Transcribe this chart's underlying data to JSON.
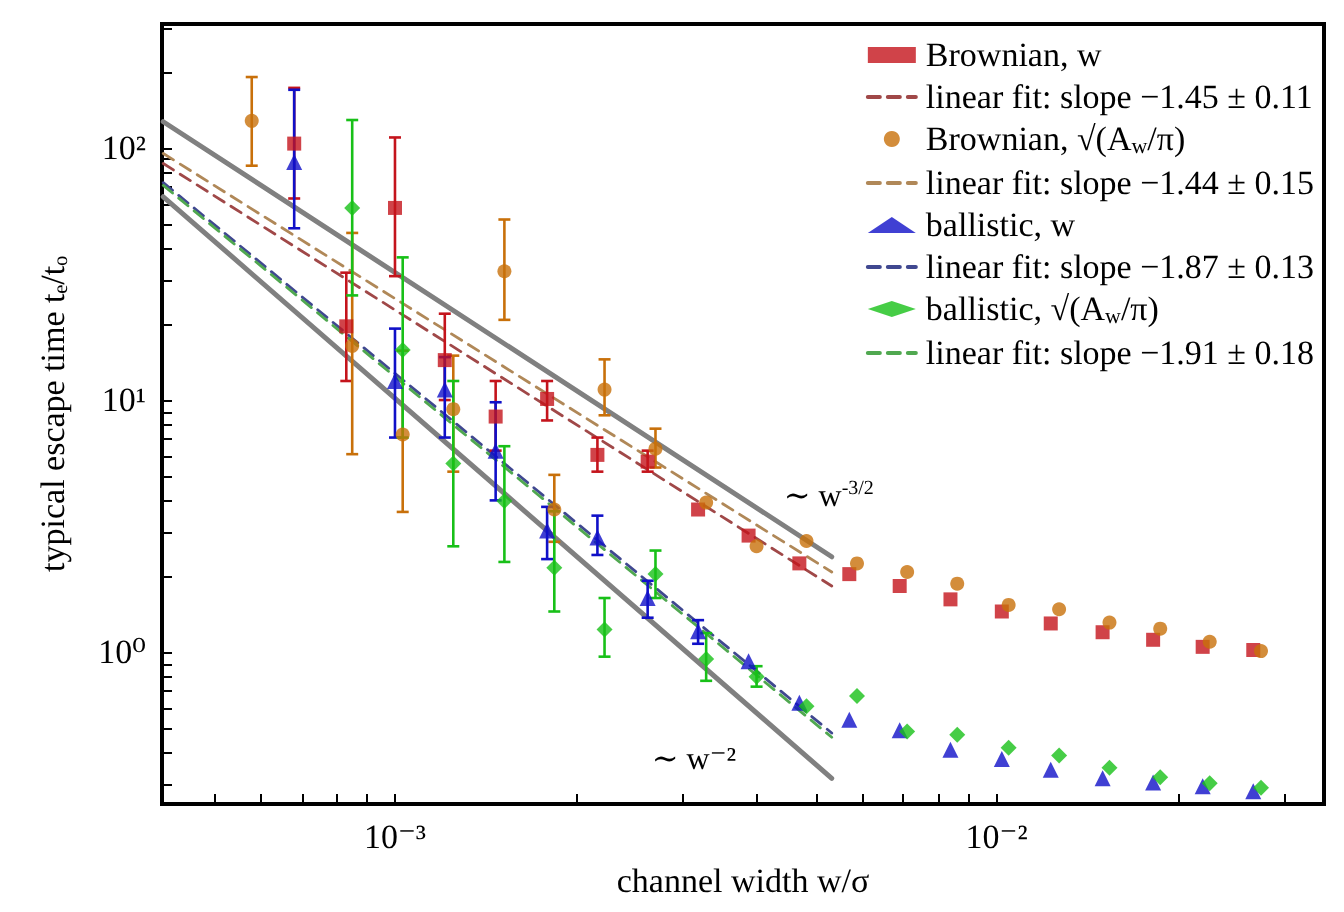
{
  "chart_data": {
    "type": "scatter",
    "xlabel": "channel width w/σ",
    "ylabel": "typical escape time tₑ/tₒ",
    "log": "xy",
    "grid": false,
    "legend": "top right",
    "xlim": [
      0.00041,
      0.035
    ],
    "ylim": [
      0.25,
      310
    ],
    "xticks": [
      {
        "value": 0.0005,
        "label": null
      },
      {
        "value": 0.0006,
        "label": null
      },
      {
        "value": 0.0007,
        "label": null
      },
      {
        "value": 0.0008,
        "label": null
      },
      {
        "value": 0.0009,
        "label": null
      },
      {
        "value": 0.001,
        "label": "10⁻³"
      },
      {
        "value": 0.002,
        "label": null
      },
      {
        "value": 0.003,
        "label": null
      },
      {
        "value": 0.004,
        "label": null
      },
      {
        "value": 0.005,
        "label": null
      },
      {
        "value": 0.006,
        "label": null
      },
      {
        "value": 0.007,
        "label": null
      },
      {
        "value": 0.008,
        "label": null
      },
      {
        "value": 0.009,
        "label": null
      },
      {
        "value": 0.01,
        "label": "10⁻²"
      },
      {
        "value": 0.02,
        "label": null
      },
      {
        "value": 0.03,
        "label": null
      }
    ],
    "yticks": [
      {
        "value": 0.3,
        "label": null
      },
      {
        "value": 0.4,
        "label": null
      },
      {
        "value": 0.5,
        "label": null
      },
      {
        "value": 0.6,
        "label": null
      },
      {
        "value": 0.7,
        "label": null
      },
      {
        "value": 0.8,
        "label": null
      },
      {
        "value": 0.9,
        "label": null
      },
      {
        "value": 1,
        "label": "10⁰"
      },
      {
        "value": 2,
        "label": null
      },
      {
        "value": 3,
        "label": null
      },
      {
        "value": 4,
        "label": null
      },
      {
        "value": 5,
        "label": null
      },
      {
        "value": 6,
        "label": null
      },
      {
        "value": 7,
        "label": null
      },
      {
        "value": 8,
        "label": null
      },
      {
        "value": 9,
        "label": null
      },
      {
        "value": 10,
        "label": "10¹"
      },
      {
        "value": 20,
        "label": null
      },
      {
        "value": 30,
        "label": null
      },
      {
        "value": 40,
        "label": null
      },
      {
        "value": 50,
        "label": null
      },
      {
        "value": 60,
        "label": null
      },
      {
        "value": 70,
        "label": null
      },
      {
        "value": 80,
        "label": null
      },
      {
        "value": 90,
        "label": null
      },
      {
        "value": 100,
        "label": "10²"
      },
      {
        "value": 200,
        "label": null
      },
      {
        "value": 300,
        "label": null
      }
    ],
    "annotations": [
      "∼ w$^{-3/2}$",
      "∼ w⁻²"
    ],
    "series": [
      {
        "name": "Brownian, w",
        "marker": "square",
        "color": "#c4141c",
        "x": [
          0.00068,
          0.00083,
          0.001,
          0.00121,
          0.00147,
          0.00179,
          0.00217,
          0.00263,
          0.00319,
          0.00387,
          0.0047,
          0.00569,
          0.0069,
          0.00838,
          0.0102,
          0.0123,
          0.015,
          0.0182,
          0.022,
          0.0267
        ],
        "values": [
          104,
          19.6,
          57.8,
          14.4,
          8.6,
          10.1,
          6.06,
          5.7,
          3.68,
          2.9,
          2.25,
          2.04,
          1.83,
          1.62,
          1.45,
          1.3,
          1.2,
          1.12,
          1.05,
          1.02
        ],
        "errors": [
          [
            63,
            173
          ],
          [
            11.9,
            32
          ],
          [
            31,
            110
          ],
          [
            10,
            22
          ],
          [
            6.3,
            11.9
          ],
          [
            8.3,
            11.9
          ],
          [
            5.2,
            7.1
          ],
          [
            5.2,
            6.3
          ],
          null,
          null,
          null,
          null,
          null,
          null,
          null,
          null,
          null,
          null,
          null,
          null
        ]
      },
      {
        "name": "linear fit: slope −1.45 ± 0.11",
        "type": "line",
        "marker": "none",
        "line_style": "dashed",
        "color": "#a04848",
        "x": [
          0.000412,
          0.00532
        ],
        "values": [
          86.7,
          1.83
        ]
      },
      {
        "name": "Brownian, √(A$_{w}$/π)",
        "marker": "circle",
        "color": "#c8700a",
        "x": [
          0.000578,
          0.000849,
          0.00103,
          0.00125,
          0.00152,
          0.00184,
          0.00223,
          0.00271,
          0.00329,
          0.00399,
          0.00483,
          0.00586,
          0.0071,
          0.0086,
          0.01047,
          0.0127,
          0.0154,
          0.0187,
          0.0226,
          0.0275
        ],
        "values": [
          128,
          16.4,
          7.3,
          9.2,
          32.4,
          3.68,
          11,
          6.41,
          3.92,
          2.63,
          2.76,
          2.25,
          2.08,
          1.87,
          1.54,
          1.48,
          1.31,
          1.24,
          1.1,
          1.01
        ],
        "errors": [
          [
            85,
            191
          ],
          [
            6.1,
            46
          ],
          [
            3.6,
            15.7
          ],
          [
            5.2,
            15
          ],
          [
            20.8,
            52
          ],
          [
            2.74,
            5.05
          ],
          [
            8.7,
            14.5
          ],
          [
            5.4,
            7.7
          ],
          null,
          null,
          null,
          null,
          null,
          null,
          null,
          null,
          null,
          null,
          null,
          null
        ]
      },
      {
        "name": "linear fit: slope −1.44 ± 0.15",
        "type": "line",
        "marker": "none",
        "line_style": "dashed",
        "color": "#b08858",
        "x": [
          0.000412,
          0.00532
        ],
        "values": [
          95,
          2.08
        ]
      },
      {
        "name": "ballistic, w",
        "marker": "triangle",
        "color": "#1010c8",
        "x": [
          0.00068,
          0.001,
          0.00121,
          0.00147,
          0.00179,
          0.00217,
          0.00263,
          0.00319,
          0.00387,
          0.0047,
          0.00569,
          0.0069,
          0.00838,
          0.0102,
          0.0123,
          0.015,
          0.0182,
          0.022,
          0.0267
        ],
        "values": [
          88,
          11.9,
          11,
          6.3,
          3.04,
          2.85,
          1.64,
          1.21,
          0.92,
          0.63,
          0.54,
          0.49,
          0.41,
          0.377,
          0.342,
          0.316,
          0.304,
          0.294,
          0.281
        ],
        "errors": [
          [
            48,
            170
          ],
          [
            7.1,
            19.2
          ],
          [
            7.1,
            14.8
          ],
          [
            4,
            9.8
          ],
          [
            2.34,
            3.77
          ],
          [
            2.43,
            3.48
          ],
          [
            1.37,
            1.92
          ],
          [
            1.08,
            1.34
          ],
          null,
          null,
          null,
          null,
          null,
          null,
          null,
          null,
          null,
          null,
          null
        ]
      },
      {
        "name": "linear fit: slope −1.87 ± 0.13",
        "type": "line",
        "marker": "none",
        "line_style": "dashed",
        "color": "#404890",
        "x": [
          0.000412,
          0.00532
        ],
        "values": [
          72.8,
          0.478
        ]
      },
      {
        "name": "ballistic, √(A$_{w}$/π)",
        "marker": "diamond",
        "color": "#18c018",
        "x": [
          0.000849,
          0.00103,
          0.00125,
          0.00152,
          0.00184,
          0.00223,
          0.00271,
          0.00329,
          0.00399,
          0.00483,
          0.00586,
          0.0071,
          0.0086,
          0.01047,
          0.0127,
          0.0154,
          0.0187,
          0.0226,
          0.0275
        ],
        "values": [
          57.8,
          15.8,
          5.6,
          3.98,
          2.16,
          1.23,
          2.04,
          0.94,
          0.8,
          0.61,
          0.67,
          0.485,
          0.47,
          0.418,
          0.389,
          0.348,
          0.319,
          0.302,
          0.29
        ],
        "errors": [
          [
            26,
            129
          ],
          [
            7.1,
            36.8
          ],
          [
            2.63,
            11.9
          ],
          [
            2.28,
            6.56
          ],
          [
            1.45,
            3.62
          ],
          [
            0.96,
            1.64
          ],
          [
            1.64,
            2.53
          ],
          [
            0.77,
            1.19
          ],
          [
            0.73,
            0.88
          ],
          null,
          null,
          null,
          null,
          null,
          null,
          null,
          null,
          null,
          null
        ]
      },
      {
        "name": "linear fit: slope −1.91 ± 0.18",
        "type": "line",
        "marker": "none",
        "line_style": "dashed",
        "color": "#50a850",
        "x": [
          0.000412,
          0.00532
        ],
        "values": [
          71,
          0.46
        ]
      },
      {
        "type": "line",
        "marker": "none",
        "line_style": "solid",
        "color": "#808080",
        "x": [
          0.000412,
          0.00532
        ],
        "values": [
          127,
          2.39
        ]
      },
      {
        "type": "line",
        "marker": "none",
        "line_style": "solid",
        "color": "#808080",
        "x": [
          0.000412,
          0.00532
        ],
        "values": [
          64,
          0.316
        ]
      }
    ]
  }
}
